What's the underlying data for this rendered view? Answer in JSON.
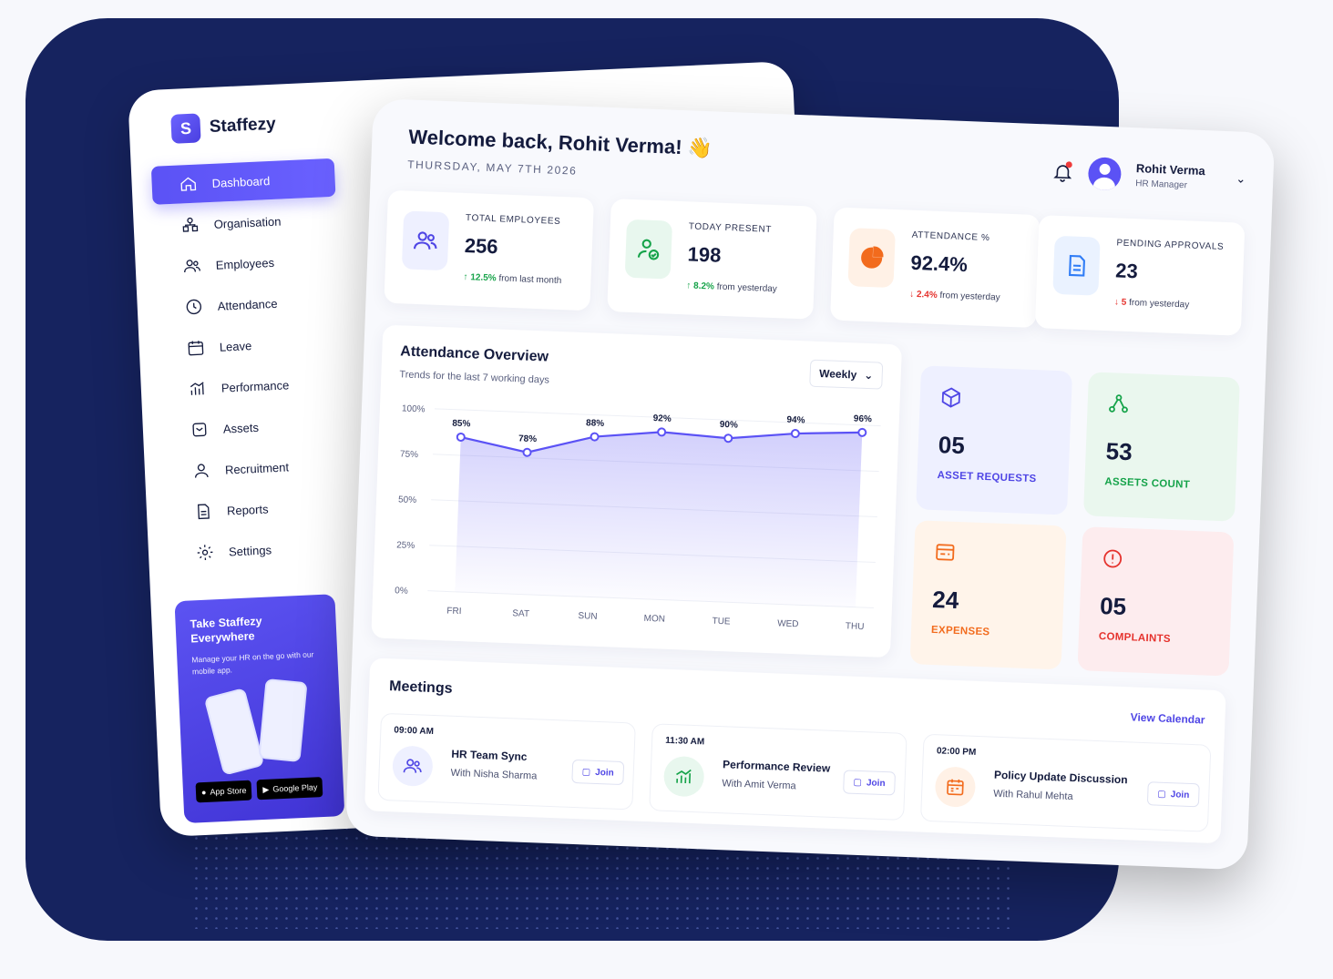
{
  "app": {
    "name": "Staffezy",
    "logo_letter": "S"
  },
  "sidebar": {
    "items": [
      {
        "label": "Dashboard",
        "icon": "home-icon",
        "active": true
      },
      {
        "label": "Organisation",
        "icon": "org-icon"
      },
      {
        "label": "Employees",
        "icon": "users-icon"
      },
      {
        "label": "Attendance",
        "icon": "clock-icon"
      },
      {
        "label": "Leave",
        "icon": "calendar-icon"
      },
      {
        "label": "Performance",
        "icon": "chart-icon"
      },
      {
        "label": "Assets",
        "icon": "box-icon"
      },
      {
        "label": "Recruitment",
        "icon": "user-icon"
      },
      {
        "label": "Reports",
        "icon": "document-icon"
      },
      {
        "label": "Settings",
        "icon": "gear-icon"
      }
    ],
    "promo": {
      "title": "Take Staffezy Everywhere",
      "subtitle": "Manage your HR on the go with our mobile app.",
      "app_store": "App Store",
      "app_store_small": "Download on the",
      "google_play": "Google Play",
      "google_play_small": "GET IT ON"
    }
  },
  "header": {
    "welcome": "Welcome back, Rohit Verma! 👋",
    "date": "THURSDAY, MAY 7TH 2026",
    "user_name": "Rohit Verma",
    "user_role": "HR Manager"
  },
  "stats": [
    {
      "label": "TOTAL EMPLOYEES",
      "value": "256",
      "delta": "12.5%",
      "delta_text": "from last month",
      "direction": "up"
    },
    {
      "label": "TODAY PRESENT",
      "value": "198",
      "delta": "8.2%",
      "delta_text": "from yesterday",
      "direction": "up"
    },
    {
      "label": "ATTENDANCE %",
      "value": "92.4%",
      "delta": "2.4%",
      "delta_text": "from yesterday",
      "direction": "down"
    },
    {
      "label": "PENDING APPROVALS",
      "value": "23",
      "delta": "5",
      "delta_text": "from yesterday",
      "direction": "down"
    }
  ],
  "overview": {
    "title": "Attendance Overview",
    "subtitle": "Trends for the last 7 working days",
    "period": "Weekly"
  },
  "chart_data": {
    "type": "area",
    "categories": [
      "FRI",
      "SAT",
      "SUN",
      "MON",
      "TUE",
      "WED",
      "THU"
    ],
    "values": [
      85,
      78,
      88,
      92,
      90,
      94,
      96
    ],
    "value_labels": [
      "85%",
      "78%",
      "88%",
      "92%",
      "90%",
      "94%",
      "96%"
    ],
    "yticks": [
      "100%",
      "75%",
      "50%",
      "25%",
      "0%"
    ],
    "ylim": [
      0,
      100
    ],
    "color": "#5b52f5"
  },
  "tiles": [
    {
      "value": "05",
      "label": "ASSET REQUESTS",
      "color": "#4f46e5",
      "bg": "#eef0ff"
    },
    {
      "value": "53",
      "label": "ASSETS COUNT",
      "color": "#16a34a",
      "bg": "#eaf7ee"
    },
    {
      "value": "24",
      "label": "EXPENSES",
      "color": "#f26b1d",
      "bg": "#fff4ea"
    },
    {
      "value": "05",
      "label": "COMPLAINTS",
      "color": "#e5322d",
      "bg": "#fdecee"
    }
  ],
  "meetings": {
    "title": "Meetings",
    "view_calendar": "View Calendar",
    "join_label": "Join",
    "items": [
      {
        "time": "09:00 AM",
        "name": "HR Team Sync",
        "with": "With Nisha Sharma"
      },
      {
        "time": "11:30 AM",
        "name": "Performance Review",
        "with": "With Amit Verma"
      },
      {
        "time": "02:00 PM",
        "name": "Policy Update Discussion",
        "with": "With Rahul Mehta"
      }
    ]
  }
}
